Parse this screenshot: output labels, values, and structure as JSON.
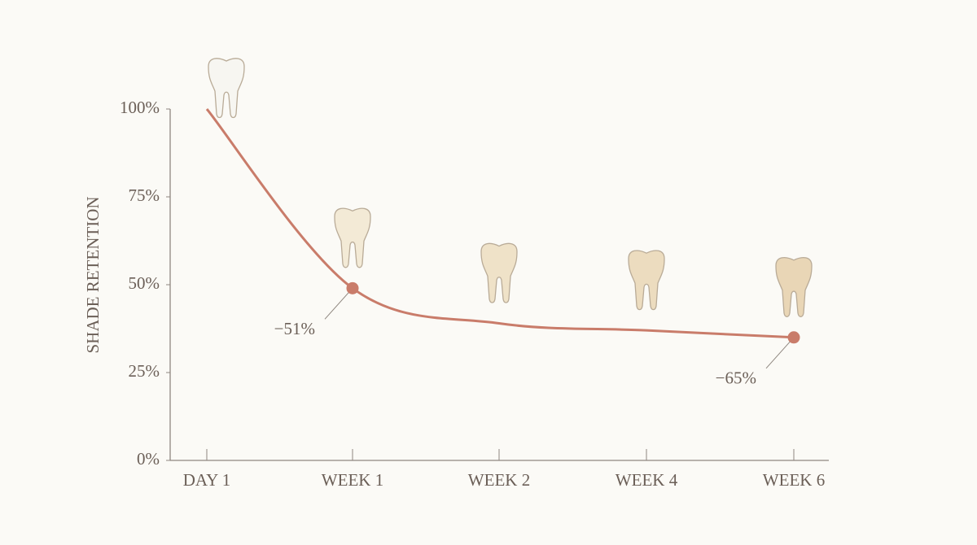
{
  "chart_data": {
    "type": "line",
    "y_label": "SHADE RETENTION",
    "categories": [
      "DAY 1",
      "WEEK 1",
      "WEEK 2",
      "WEEK 4",
      "WEEK 6"
    ],
    "series": [
      {
        "name": "Shade retention",
        "color": "#c97c6a",
        "values": [
          100,
          49,
          39,
          37,
          35
        ]
      }
    ],
    "ylim": [
      0,
      100
    ],
    "yticks": [
      {
        "value": 0,
        "label": "0%"
      },
      {
        "value": 25,
        "label": "25%"
      },
      {
        "value": 50,
        "label": "50%"
      },
      {
        "value": 75,
        "label": "75%"
      },
      {
        "value": 100,
        "label": "100%"
      }
    ],
    "annotations": [
      {
        "text": "−51%",
        "x": "WEEK 1"
      },
      {
        "text": "−65%",
        "x": "WEEK 6"
      }
    ]
  }
}
